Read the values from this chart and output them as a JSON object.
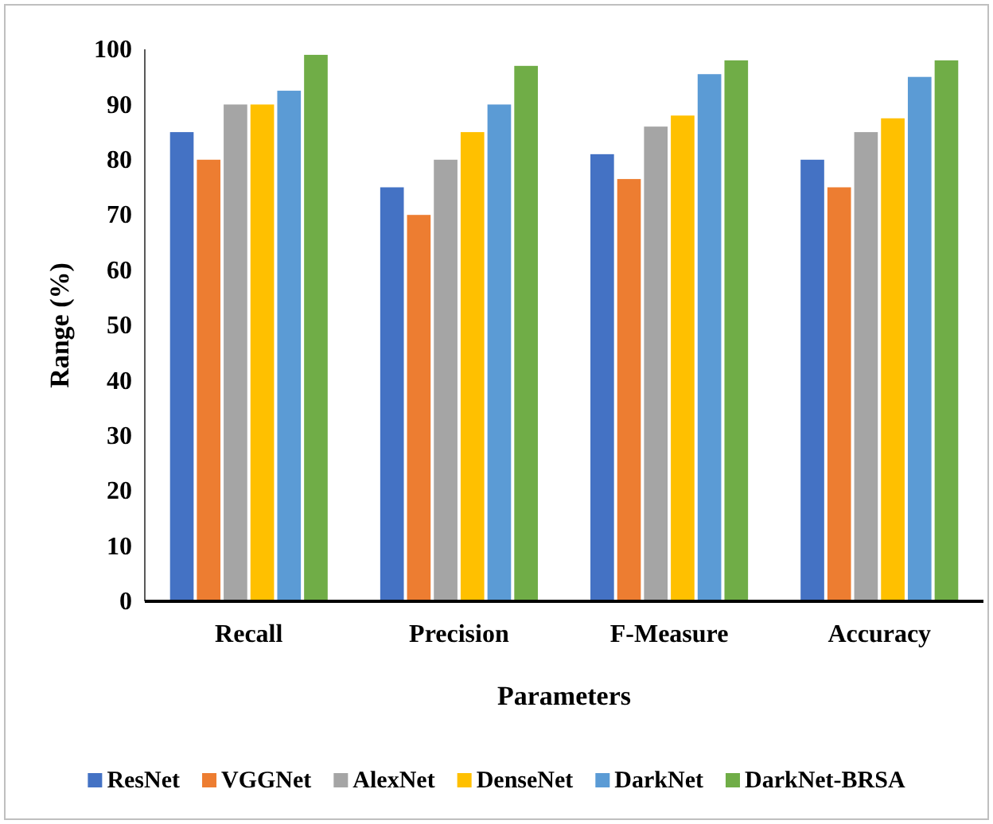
{
  "chart_data": {
    "type": "bar",
    "xlabel": "Parameters",
    "ylabel": "Range (%)",
    "categories": [
      "Recall",
      "Precision",
      "F-Measure",
      "Accuracy"
    ],
    "series": [
      {
        "name": "ResNet",
        "color": "#4472c4",
        "values": [
          85,
          75,
          81,
          80
        ]
      },
      {
        "name": "VGGNet",
        "color": "#ed7d31",
        "values": [
          80,
          70,
          76.5,
          75
        ]
      },
      {
        "name": "AlexNet",
        "color": "#a5a5a5",
        "values": [
          90,
          80,
          86,
          85
        ]
      },
      {
        "name": "DenseNet",
        "color": "#ffc000",
        "values": [
          90,
          85,
          88,
          87.5
        ]
      },
      {
        "name": "DarkNet",
        "color": "#5b9bd5",
        "values": [
          92.5,
          90,
          95.5,
          95
        ]
      },
      {
        "name": "DarkNet-BRSA",
        "color": "#70ad47",
        "values": [
          99,
          97,
          98,
          98
        ]
      }
    ],
    "ylim": [
      0,
      100
    ],
    "yticks": [
      0,
      10,
      20,
      30,
      40,
      50,
      60,
      70,
      80,
      90,
      100
    ],
    "grid": false,
    "legend": "bottom"
  }
}
